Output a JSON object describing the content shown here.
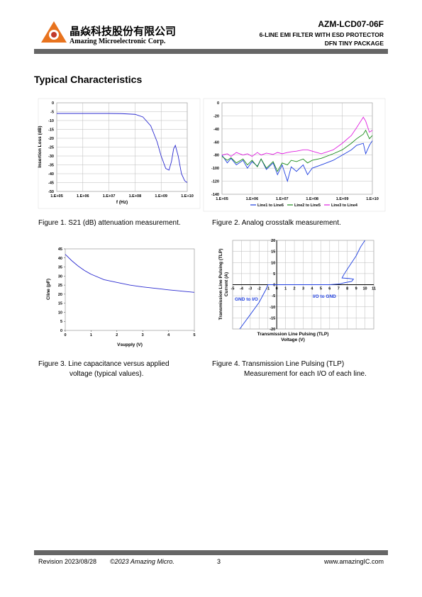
{
  "header": {
    "company_cn": "晶焱科技股份有限公司",
    "company_en": "Amazing Microelectronic Corp.",
    "part_number": "AZM-LCD07-06F",
    "subtitle_1": "6-LINE EMI FILTER WITH ESD PROTECTOR",
    "subtitle_2": "DFN TINY PACKAGE"
  },
  "section_title": "Typical Characteristics",
  "figures": [
    {
      "caption": [
        "Figure 1.   S21 (dB) attenuation measurement."
      ],
      "chart": {
        "type": "line",
        "xlabel": [
          "f (Hz)"
        ],
        "ylabel": [
          "Insertion Loss (dB)"
        ],
        "log_x": true,
        "grid": true,
        "xlim": [
          100000,
          10000000000
        ],
        "ylim": [
          -50,
          0
        ],
        "xticks": [
          {
            "value": 100000,
            "label": "1.E+05"
          },
          {
            "value": 1000000,
            "label": "1.E+06"
          },
          {
            "value": 10000000,
            "label": "1.E+07"
          },
          {
            "value": 100000000,
            "label": "1.E+08"
          },
          {
            "value": 1000000000,
            "label": "1.E+09"
          },
          {
            "value": 10000000000,
            "label": "1.E+10"
          }
        ],
        "yticks": [
          -50,
          -45,
          -40,
          -35,
          -30,
          -25,
          -20,
          -15,
          -10,
          -5,
          0
        ],
        "x": [
          100000,
          1000000,
          10000000,
          30000000,
          100000000,
          200000000,
          400000000,
          700000000,
          1000000000,
          1500000000,
          2000000000,
          2500000000,
          3000000000,
          3500000000,
          4500000000,
          6000000000,
          8000000000,
          10000000000
        ],
        "series": [
          {
            "color": "#2b2bd0",
            "values": [
              -6,
              -6,
              -6,
              -6.1,
              -6.5,
              -8,
              -13,
              -22,
              -30,
              -37,
              -38,
              -33,
              -26,
              -24,
              -30,
              -40,
              -44,
              -45
            ]
          }
        ]
      }
    },
    {
      "caption": [
        "Figure 2.   Analog crosstalk measurement."
      ],
      "chart": {
        "type": "line",
        "log_x": true,
        "grid": true,
        "legend": "bottom",
        "xlim": [
          100000,
          10000000000
        ],
        "ylim": [
          -140,
          0
        ],
        "xticks": [
          {
            "value": 100000,
            "label": "1.E+05"
          },
          {
            "value": 1000000,
            "label": "1.E+06"
          },
          {
            "value": 10000000,
            "label": "1.E+07"
          },
          {
            "value": 100000000,
            "label": "1.E+08"
          },
          {
            "value": 1000000000,
            "label": "1.E+09"
          },
          {
            "value": 10000000000,
            "label": "1.E+10"
          }
        ],
        "yticks": [
          -140,
          -120,
          -100,
          -80,
          -60,
          -40,
          -20,
          0
        ],
        "x": [
          100000,
          150000,
          200000,
          300000,
          500000,
          700000,
          1000000,
          1500000,
          2000000,
          3000000,
          5000000,
          7000000,
          10000000,
          15000000,
          20000000,
          30000000,
          50000000,
          70000000,
          100000000,
          200000000,
          500000000,
          1000000000,
          2000000000,
          3000000000,
          5000000000,
          6000000000,
          8000000000,
          10000000000
        ],
        "series": [
          {
            "name": "Line1 to Line6",
            "color": "#1f3fe0",
            "values": [
              -80,
              -92,
              -85,
              -95,
              -88,
              -100,
              -90,
              -97,
              -86,
              -102,
              -92,
              -110,
              -95,
              -120,
              -98,
              -105,
              -95,
              -110,
              -100,
              -95,
              -88,
              -80,
              -72,
              -65,
              -62,
              -78,
              -65,
              -58
            ]
          },
          {
            "name": "Line2 to Line5",
            "color": "#1a8a1a",
            "values": [
              -82,
              -88,
              -84,
              -92,
              -86,
              -95,
              -88,
              -98,
              -86,
              -100,
              -90,
              -105,
              -92,
              -95,
              -88,
              -90,
              -86,
              -92,
              -88,
              -85,
              -78,
              -72,
              -62,
              -55,
              -48,
              -42,
              -55,
              -50
            ]
          },
          {
            "name": "Line3 to Line4",
            "color": "#e020e0",
            "values": [
              -80,
              -78,
              -82,
              -76,
              -80,
              -78,
              -82,
              -76,
              -80,
              -77,
              -79,
              -76,
              -78,
              -76,
              -75,
              -74,
              -72,
              -72,
              -74,
              -78,
              -72,
              -62,
              -50,
              -38,
              -22,
              -28,
              -45,
              -42
            ]
          }
        ]
      }
    },
    {
      "caption": [
        "Figure  3.  Line  capacitance  versus  applied",
        "voltage (typical values)."
      ],
      "chart": {
        "type": "line",
        "xlabel": [
          "Vsupply (V)"
        ],
        "ylabel": [
          "Cline (pF)"
        ],
        "grid": false,
        "xlim": [
          0,
          5
        ],
        "ylim": [
          0,
          45
        ],
        "xticks": [
          0,
          1,
          2,
          3,
          4,
          5
        ],
        "yticks": [
          0,
          5,
          10,
          15,
          20,
          25,
          30,
          35,
          40,
          45
        ],
        "x": [
          0,
          0.25,
          0.5,
          0.75,
          1,
          1.5,
          2,
          2.5,
          3,
          3.5,
          4,
          4.5,
          5
        ],
        "series": [
          {
            "color": "#2b2bd0",
            "values": [
              42,
              38.5,
              35.5,
              33,
              31,
              28,
              26.5,
              25,
              24,
              23.2,
              22.4,
              21.7,
              21
            ]
          }
        ]
      }
    },
    {
      "caption": [
        "Figure 4. Transmission Line Pulsing (TLP)",
        "Measurement for each I/O of each line."
      ],
      "chart": {
        "type": "line",
        "xlabel": [
          "Transmission Line Pulsing (TLP)",
          "Voltage (V)"
        ],
        "ylabel": [
          "Transmission Line Pulsing (TLP)",
          "Current (A)"
        ],
        "grid": true,
        "axes_at_zero": true,
        "annotations": [
          "I/O to GND",
          "GND to I/O"
        ],
        "xlim": [
          -5,
          11
        ],
        "ylim": [
          -20,
          20
        ],
        "xticks": [
          -5,
          -4,
          -3,
          -2,
          -1,
          0,
          1,
          2,
          3,
          4,
          5,
          6,
          7,
          8,
          9,
          10,
          11
        ],
        "yticks": [
          -20,
          -15,
          -10,
          -5,
          0,
          5,
          10,
          15,
          20
        ],
        "x": [
          -4.2,
          -3,
          -2,
          -1.2,
          -1,
          0,
          3,
          6,
          7,
          7.3,
          7.6,
          8.5,
          8.7,
          8.2,
          7.4,
          7.6,
          8,
          8.5,
          9,
          9.5,
          10
        ],
        "series": [
          {
            "color": "#1f3fe0",
            "values": [
              -20,
              -13.5,
              -8,
              -2,
              0,
              0,
              0,
              0,
              0.3,
              0.5,
              0.8,
              1.5,
              2.5,
              2.8,
              3,
              4.5,
              7,
              10,
              13,
              17,
              20
            ]
          }
        ]
      }
    }
  ],
  "footer": {
    "revision": "Revision 2023/08/28",
    "copyright": "©2023 Amazing Micro.",
    "page": "3",
    "website": "www.amazingIC.com"
  }
}
